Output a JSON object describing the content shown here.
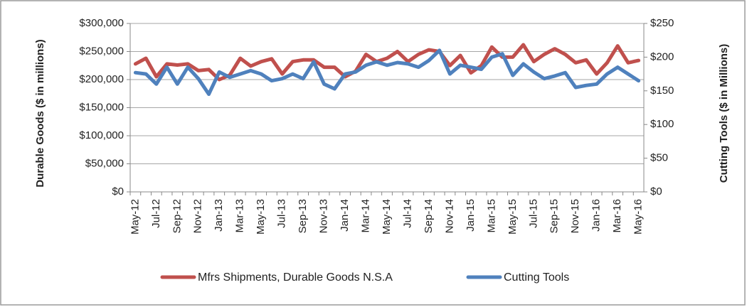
{
  "chart_data": {
    "type": "line",
    "y_label": "Durable Goods ($ in millions)",
    "y2_label": "Cutting Tools ($ in Millions)",
    "categories": [
      "May-12",
      null,
      "Jul-12",
      null,
      "Sep-12",
      null,
      "Nov-12",
      null,
      "Jan-13",
      null,
      "Mar-13",
      null,
      "May-13",
      null,
      "Jul-13",
      null,
      "Sep-13",
      null,
      "Nov-13",
      null,
      "Jan-14",
      null,
      "Mar-14",
      null,
      "May-14",
      null,
      "Jul-14",
      null,
      "Sep-14",
      null,
      "Nov-14",
      null,
      "Jan-15",
      null,
      "Mar-15",
      null,
      "May-15",
      null,
      "Jul-15",
      null,
      "Sep-15",
      null,
      "Nov-15",
      null,
      "Jan-16",
      null,
      "Mar-16",
      null,
      "May-16"
    ],
    "series": [
      {
        "name": "Mfrs Shipments, Durable Goods N.S.A",
        "color": "#c0504d",
        "axis": "y",
        "values": [
          228000,
          238000,
          205000,
          228000,
          226000,
          228000,
          216000,
          218000,
          200000,
          208000,
          238000,
          224000,
          232000,
          237000,
          210000,
          232000,
          235000,
          235000,
          222000,
          222000,
          205000,
          215000,
          245000,
          232000,
          238000,
          250000,
          232000,
          245000,
          253000,
          250000,
          225000,
          243000,
          212000,
          225000,
          258000,
          240000,
          240000,
          262000,
          232000,
          245000,
          255000,
          245000,
          230000,
          235000,
          210000,
          230000,
          260000,
          230000,
          234000
        ]
      },
      {
        "name": "Cutting Tools",
        "color": "#4f81bd",
        "axis": "y2",
        "values": [
          177,
          175,
          160,
          185,
          160,
          185,
          168,
          145,
          178,
          170,
          175,
          180,
          175,
          165,
          168,
          175,
          168,
          193,
          160,
          153,
          175,
          178,
          188,
          193,
          188,
          192,
          190,
          185,
          195,
          210,
          175,
          188,
          185,
          182,
          200,
          205,
          173,
          190,
          178,
          168,
          172,
          177,
          155,
          158,
          160,
          175,
          185,
          175,
          165
        ]
      }
    ],
    "ylim": [
      0,
      300000
    ],
    "yticks": [
      {
        "value": 0,
        "label": "$0"
      },
      {
        "value": 50000,
        "label": "$50,000"
      },
      {
        "value": 100000,
        "label": "$100,000"
      },
      {
        "value": 150000,
        "label": "$150,000"
      },
      {
        "value": 200000,
        "label": "$200,000"
      },
      {
        "value": 250000,
        "label": "$250,000"
      },
      {
        "value": 300000,
        "label": "$300,000"
      }
    ],
    "y2lim": [
      0,
      250
    ],
    "y2ticks": [
      {
        "value": 0,
        "label": "$0"
      },
      {
        "value": 50,
        "label": "$50"
      },
      {
        "value": 100,
        "label": "$100"
      },
      {
        "value": 150,
        "label": "$150"
      },
      {
        "value": 200,
        "label": "$200"
      },
      {
        "value": 250,
        "label": "$250"
      }
    ],
    "grid": true,
    "legend": "bottom"
  }
}
